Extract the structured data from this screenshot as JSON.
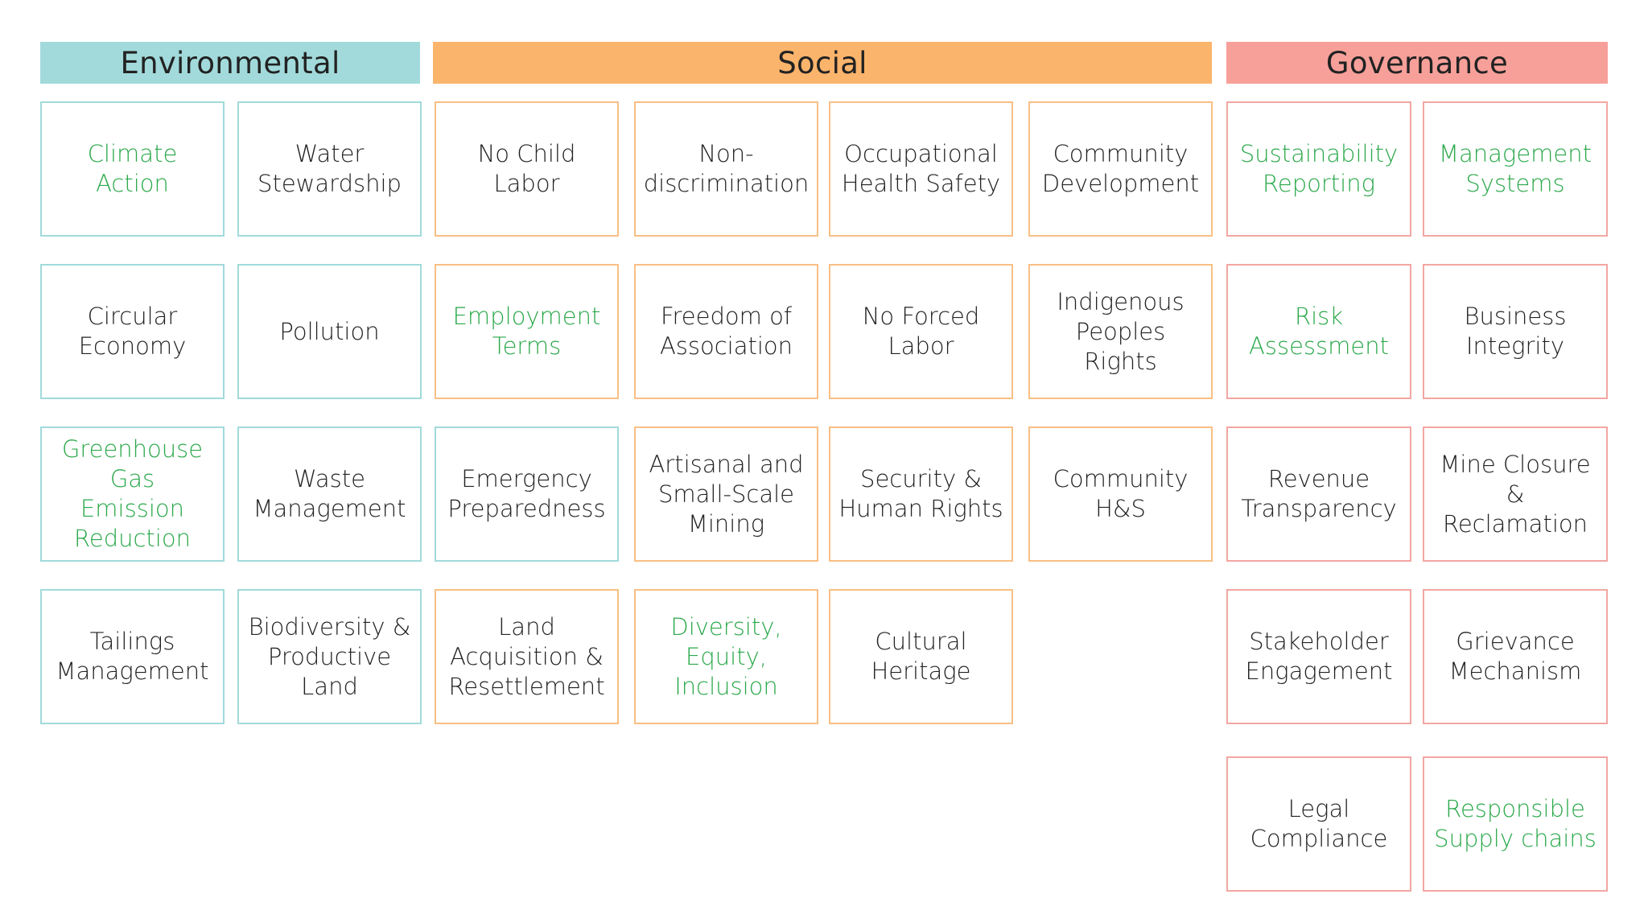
{
  "colors": {
    "environmental_header": "#a2dadb",
    "environmental_border": "#a2dadb",
    "social_header": "#fbb46c",
    "social_border": "#f9bf85",
    "governance_header": "#f7a09a",
    "governance_border": "#f3a6a2",
    "highlight_text": "#2aa84a",
    "default_text": "#222222"
  },
  "headers": [
    {
      "id": "environmental",
      "label": "Environmental",
      "color_key": "environmental_header"
    },
    {
      "id": "social",
      "label": "Social",
      "color_key": "social_header"
    },
    {
      "id": "governance",
      "label": "Governance",
      "color_key": "governance_header"
    }
  ],
  "cells": [
    {
      "id": "climate-action",
      "label": "Climate\nAction",
      "highlight": true,
      "border": "environmental_border"
    },
    {
      "id": "water-stewardship",
      "label": "Water\nStewardship",
      "highlight": false,
      "border": "environmental_border"
    },
    {
      "id": "no-child-labor",
      "label": "No Child\nLabor",
      "highlight": false,
      "border": "social_border"
    },
    {
      "id": "non-discrimination",
      "label": "Non-\ndiscrimination",
      "highlight": false,
      "border": "social_border"
    },
    {
      "id": "occupational-health-safety",
      "label": "Occupational\nHealth Safety",
      "highlight": false,
      "border": "social_border"
    },
    {
      "id": "community-development",
      "label": "Community\nDevelopment",
      "highlight": false,
      "border": "social_border"
    },
    {
      "id": "sustainability-reporting",
      "label": "Sustainability\nReporting",
      "highlight": true,
      "border": "governance_border"
    },
    {
      "id": "management-systems",
      "label": "Management\nSystems",
      "highlight": true,
      "border": "governance_border"
    },
    {
      "id": "circular-economy",
      "label": "Circular\nEconomy",
      "highlight": false,
      "border": "environmental_border"
    },
    {
      "id": "pollution",
      "label": "Pollution",
      "highlight": false,
      "border": "environmental_border"
    },
    {
      "id": "employment-terms",
      "label": "Employment\nTerms",
      "highlight": true,
      "border": "social_border"
    },
    {
      "id": "freedom-of-association",
      "label": "Freedom of\nAssociation",
      "highlight": false,
      "border": "social_border"
    },
    {
      "id": "no-forced-labor",
      "label": "No Forced\nLabor",
      "highlight": false,
      "border": "social_border"
    },
    {
      "id": "indigenous-peoples-rights",
      "label": "Indigenous\nPeoples\nRights",
      "highlight": false,
      "border": "social_border"
    },
    {
      "id": "risk-assessment",
      "label": "Risk\nAssessment",
      "highlight": true,
      "border": "governance_border"
    },
    {
      "id": "business-integrity",
      "label": "Business\nIntegrity",
      "highlight": false,
      "border": "governance_border"
    },
    {
      "id": "greenhouse-gas-emission-reduction",
      "label": "Greenhouse\nGas\nEmission\nReduction",
      "highlight": true,
      "border": "environmental_border"
    },
    {
      "id": "waste-management",
      "label": "Waste\nManagement",
      "highlight": false,
      "border": "environmental_border"
    },
    {
      "id": "emergency-preparedness",
      "label": "Emergency\nPreparedness",
      "highlight": false,
      "border": "environmental_border"
    },
    {
      "id": "artisanal-small-scale-mining",
      "label": "Artisanal and\nSmall-Scale\nMining",
      "highlight": false,
      "border": "social_border"
    },
    {
      "id": "security-human-rights",
      "label": "Security &\nHuman Rights",
      "highlight": false,
      "border": "social_border"
    },
    {
      "id": "community-hs",
      "label": "Community\nH&S",
      "highlight": false,
      "border": "social_border"
    },
    {
      "id": "revenue-transparency",
      "label": "Revenue\nTransparency",
      "highlight": false,
      "border": "governance_border"
    },
    {
      "id": "mine-closure-reclamation",
      "label": "Mine Closure &\nReclamation",
      "highlight": false,
      "border": "governance_border"
    },
    {
      "id": "tailings-management",
      "label": "Tailings\nManagement",
      "highlight": false,
      "border": "environmental_border"
    },
    {
      "id": "biodiversity-productive-land",
      "label": "Biodiversity &\nProductive\nLand",
      "highlight": false,
      "border": "environmental_border"
    },
    {
      "id": "land-acquisition-resettlement",
      "label": "Land\nAcquisition &\nResettlement",
      "highlight": false,
      "border": "social_border"
    },
    {
      "id": "diversity-equity-inclusion",
      "label": "Diversity,\nEquity,\nInclusion",
      "highlight": true,
      "border": "social_border"
    },
    {
      "id": "cultural-heritage",
      "label": "Cultural\nHeritage",
      "highlight": false,
      "border": "social_border"
    },
    {
      "id": "stakeholder-engagement",
      "label": "Stakeholder\nEngagement",
      "highlight": false,
      "border": "governance_border"
    },
    {
      "id": "grievance-mechanism",
      "label": "Grievance\nMechanism",
      "highlight": false,
      "border": "governance_border"
    },
    {
      "id": "legal-compliance",
      "label": "Legal\nCompliance",
      "highlight": false,
      "border": "governance_border"
    },
    {
      "id": "responsible-supply-chains",
      "label": "Responsible\nSupply chains",
      "highlight": true,
      "border": "governance_border"
    }
  ]
}
